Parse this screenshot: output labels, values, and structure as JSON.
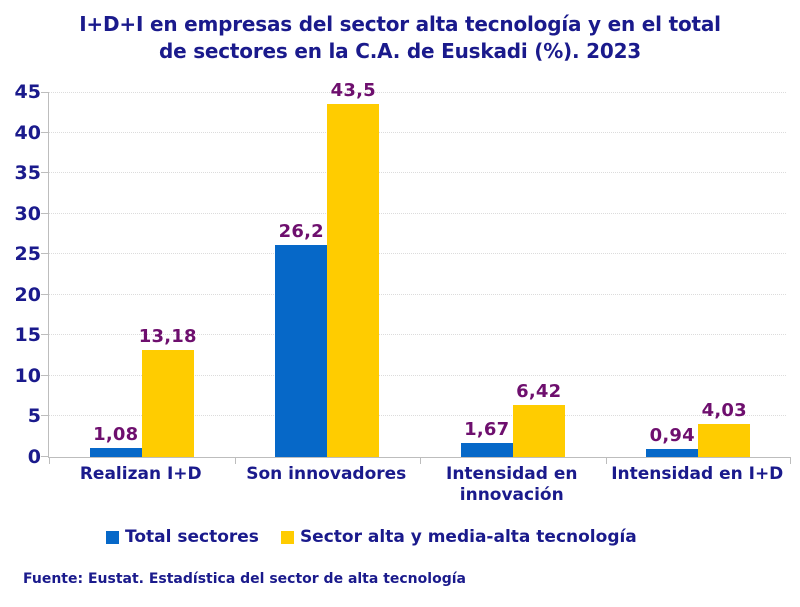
{
  "chart_data": {
    "type": "bar",
    "title": "I+D+I en empresas del sector alta tecnología y en el total de sectores en la C.A. de Euskadi (%). 2023",
    "title_lines": [
      "I+D+I en empresas del sector alta tecnología y en el total",
      "de sectores en la C.A. de Euskadi (%). 2023"
    ],
    "categories": [
      "Realizan I+D",
      "Son innovadores",
      "Intensidad en innovación",
      "Intensidad en I+D"
    ],
    "category_labels": [
      "Realizan I+D",
      "Son innovadores",
      "Intensidad en\ninnovación",
      "Intensidad en I+D"
    ],
    "series": [
      {
        "name": "Total sectores",
        "color": "#0668C8",
        "values": [
          1.08,
          26.2,
          1.67,
          0.94
        ],
        "labels": [
          "1,08",
          "26,2",
          "1,67",
          "0,94"
        ]
      },
      {
        "name": "Sector alta y media-alta tecnología",
        "color": "#FFCC00",
        "values": [
          13.18,
          43.5,
          6.42,
          4.03
        ],
        "labels": [
          "13,18",
          "43,5",
          "6,42",
          "4,03"
        ]
      }
    ],
    "xlabel": "",
    "ylabel": "",
    "ylim": [
      0,
      45
    ],
    "ytick_step": 5,
    "yticks": [
      "0",
      "5",
      "10",
      "15",
      "20",
      "25",
      "30",
      "35",
      "40",
      "45"
    ],
    "grid": true,
    "legend_position": "bottom",
    "text_color": "#1A1A8C",
    "value_label_color": "#6E0F6E"
  },
  "footer": {
    "source": "Fuente: Eustat. Estadística del sector de alta tecnología"
  }
}
